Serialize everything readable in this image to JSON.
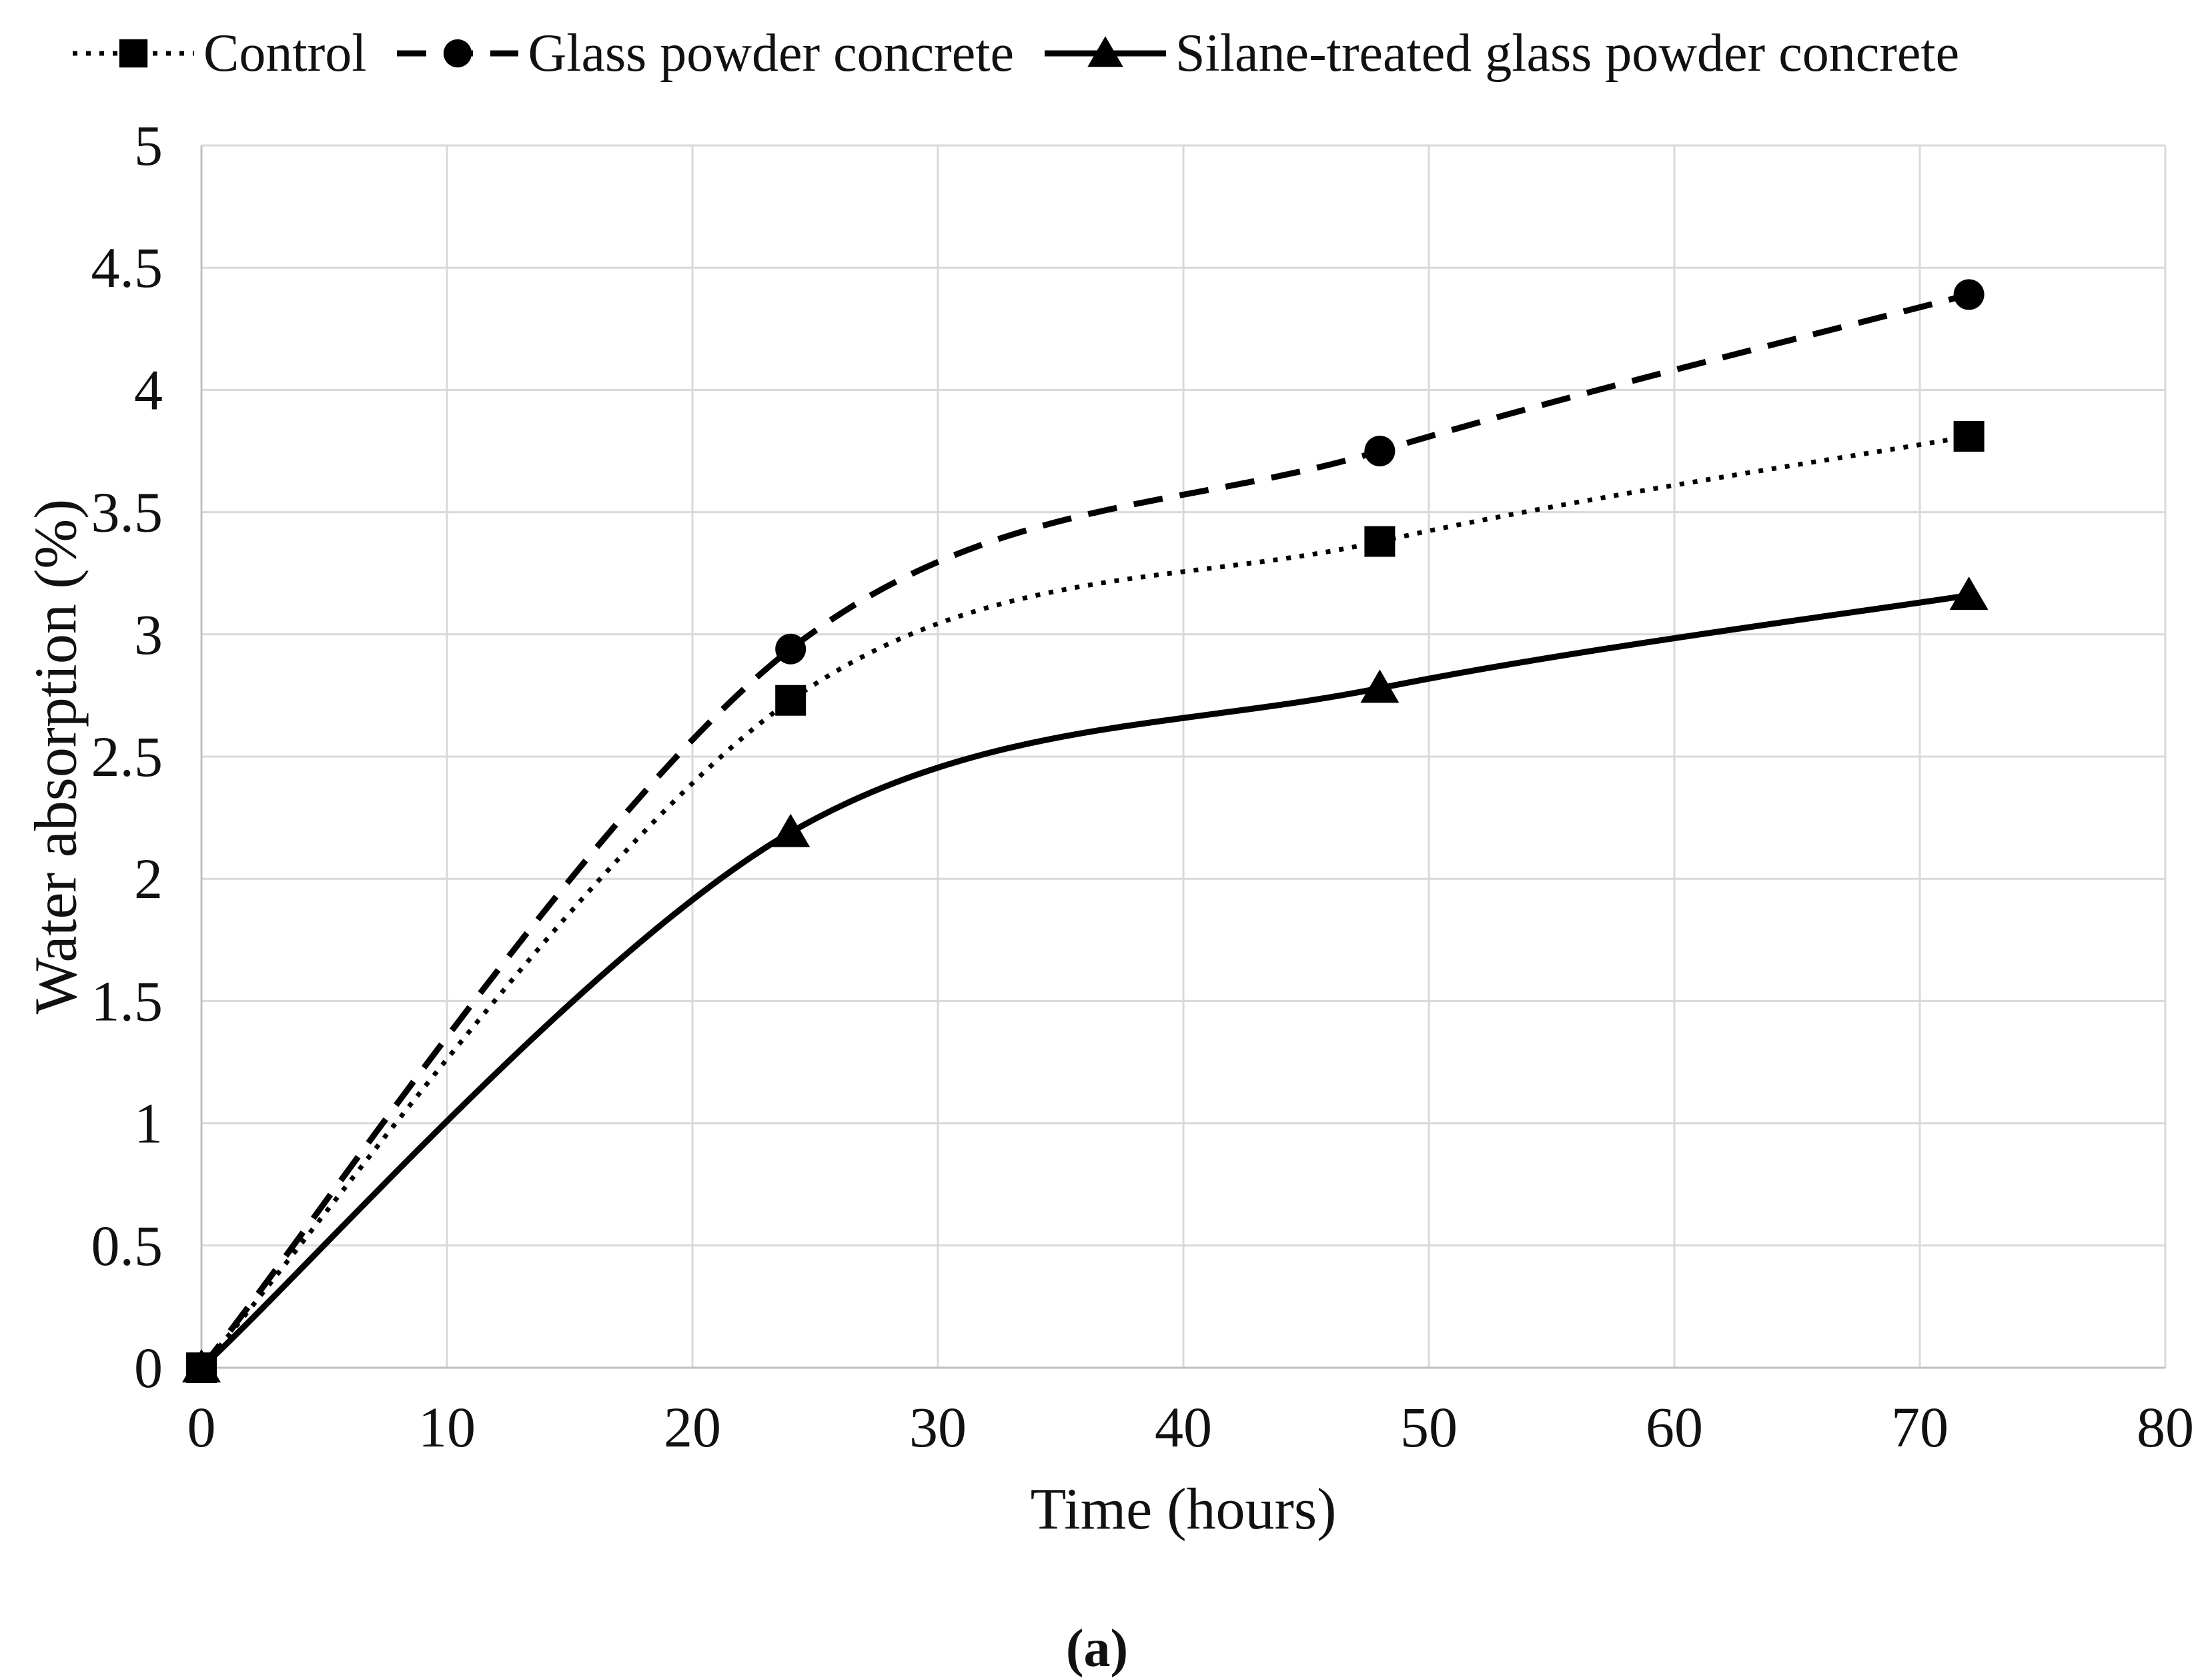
{
  "figure": {
    "caption": "(a)"
  },
  "chart_data": {
    "type": "line",
    "title": "",
    "xlabel": "Time (hours)",
    "ylabel": "Water absorption (%)",
    "xlim": [
      0,
      80
    ],
    "ylim": [
      0,
      5
    ],
    "x_ticks": [
      0,
      10,
      20,
      30,
      40,
      50,
      60,
      70,
      80
    ],
    "y_ticks": [
      0,
      0.5,
      1,
      1.5,
      2,
      2.5,
      3,
      3.5,
      4,
      4.5,
      5
    ],
    "grid": true,
    "legend_position": "top",
    "x": [
      0,
      24,
      48,
      72
    ],
    "series": [
      {
        "name": "Control",
        "marker": "square",
        "line_style": "dotted",
        "values": [
          0,
          2.73,
          3.38,
          3.81
        ]
      },
      {
        "name": "Glass powder concrete",
        "marker": "circle",
        "line_style": "dashed",
        "values": [
          0,
          2.94,
          3.75,
          4.39
        ]
      },
      {
        "name": "Silane-treated glass powder concrete",
        "marker": "triangle",
        "line_style": "solid",
        "values": [
          0,
          2.19,
          2.78,
          3.16
        ]
      }
    ],
    "colors": {
      "series": "#000000",
      "grid": "#d9d9d9",
      "axis": "#c0c0c0",
      "text": "#111111",
      "background": "#ffffff"
    }
  }
}
